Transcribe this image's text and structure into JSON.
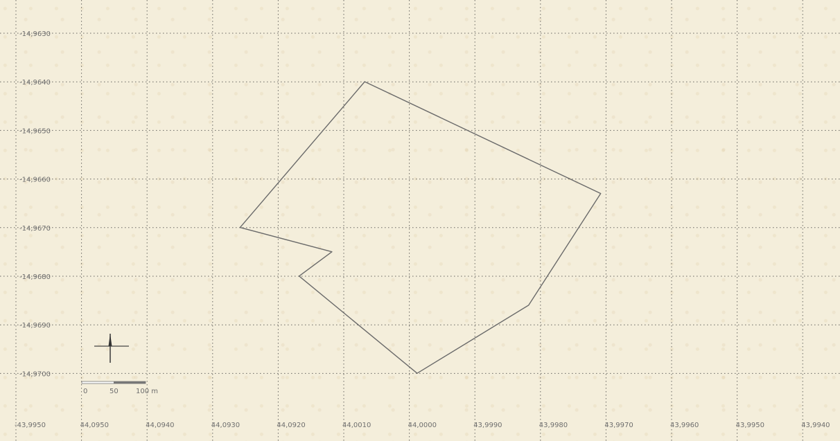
{
  "map": {
    "y_ticks": [
      "-14,9630",
      "-14,9640",
      "-14,9650",
      "-14,9660",
      "-14,9670",
      "-14,9680",
      "-14,9690",
      "-14,9700"
    ],
    "x_ticks": [
      "-43,9950",
      "44,0950",
      "44,0940",
      "44,0930",
      "44,0920",
      "44,0010",
      "44,0000",
      "43,9990",
      "43,9980",
      "43,9970",
      "43,9960",
      "43,9950",
      "43,9940"
    ],
    "parcel_vertices": [
      [
        44.0007,
        -14.964
      ],
      [
        43.9971,
        -14.9663
      ],
      [
        43.9982,
        -14.9686
      ],
      [
        43.9999,
        -14.97
      ],
      [
        44.0017,
        -14.968
      ],
      [
        44.0012,
        -14.9675
      ],
      [
        44.0026,
        -14.967
      ]
    ],
    "scale_bar": {
      "labels": [
        "0",
        "50",
        "100 m"
      ]
    },
    "icons": {
      "north_arrow": "compass-rose-icon"
    },
    "colors": {
      "paper": "#f4eedb",
      "grid": "#3a3a3a",
      "parcel": "#6a6a6a",
      "label": "#6e6e6e"
    }
  }
}
